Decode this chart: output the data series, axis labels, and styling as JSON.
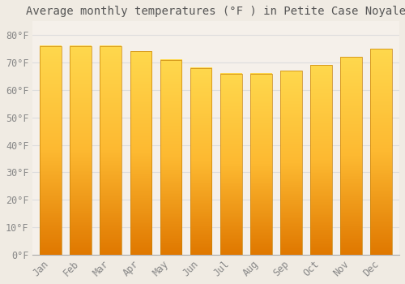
{
  "title": "Average monthly temperatures (°F ) in Petite Case Noyale",
  "months": [
    "Jan",
    "Feb",
    "Mar",
    "Apr",
    "May",
    "Jun",
    "Jul",
    "Aug",
    "Sep",
    "Oct",
    "Nov",
    "Dec"
  ],
  "values": [
    76,
    76,
    76,
    74,
    71,
    68,
    66,
    66,
    67,
    69,
    72,
    75
  ],
  "bar_color_bottom": "#E07800",
  "bar_color_top": "#FFD84D",
  "bar_color_mid": "#FDB931",
  "bar_edge_color": "#C8830A",
  "background_color": "#F0EBE3",
  "plot_bg_color": "#F5F0EA",
  "grid_color": "#DDDDDD",
  "text_color": "#888888",
  "title_color": "#555555",
  "ylim": [
    0,
    85
  ],
  "ytick_values": [
    0,
    10,
    20,
    30,
    40,
    50,
    60,
    70,
    80
  ],
  "title_fontsize": 10,
  "tick_fontsize": 8.5,
  "bar_width": 0.72
}
